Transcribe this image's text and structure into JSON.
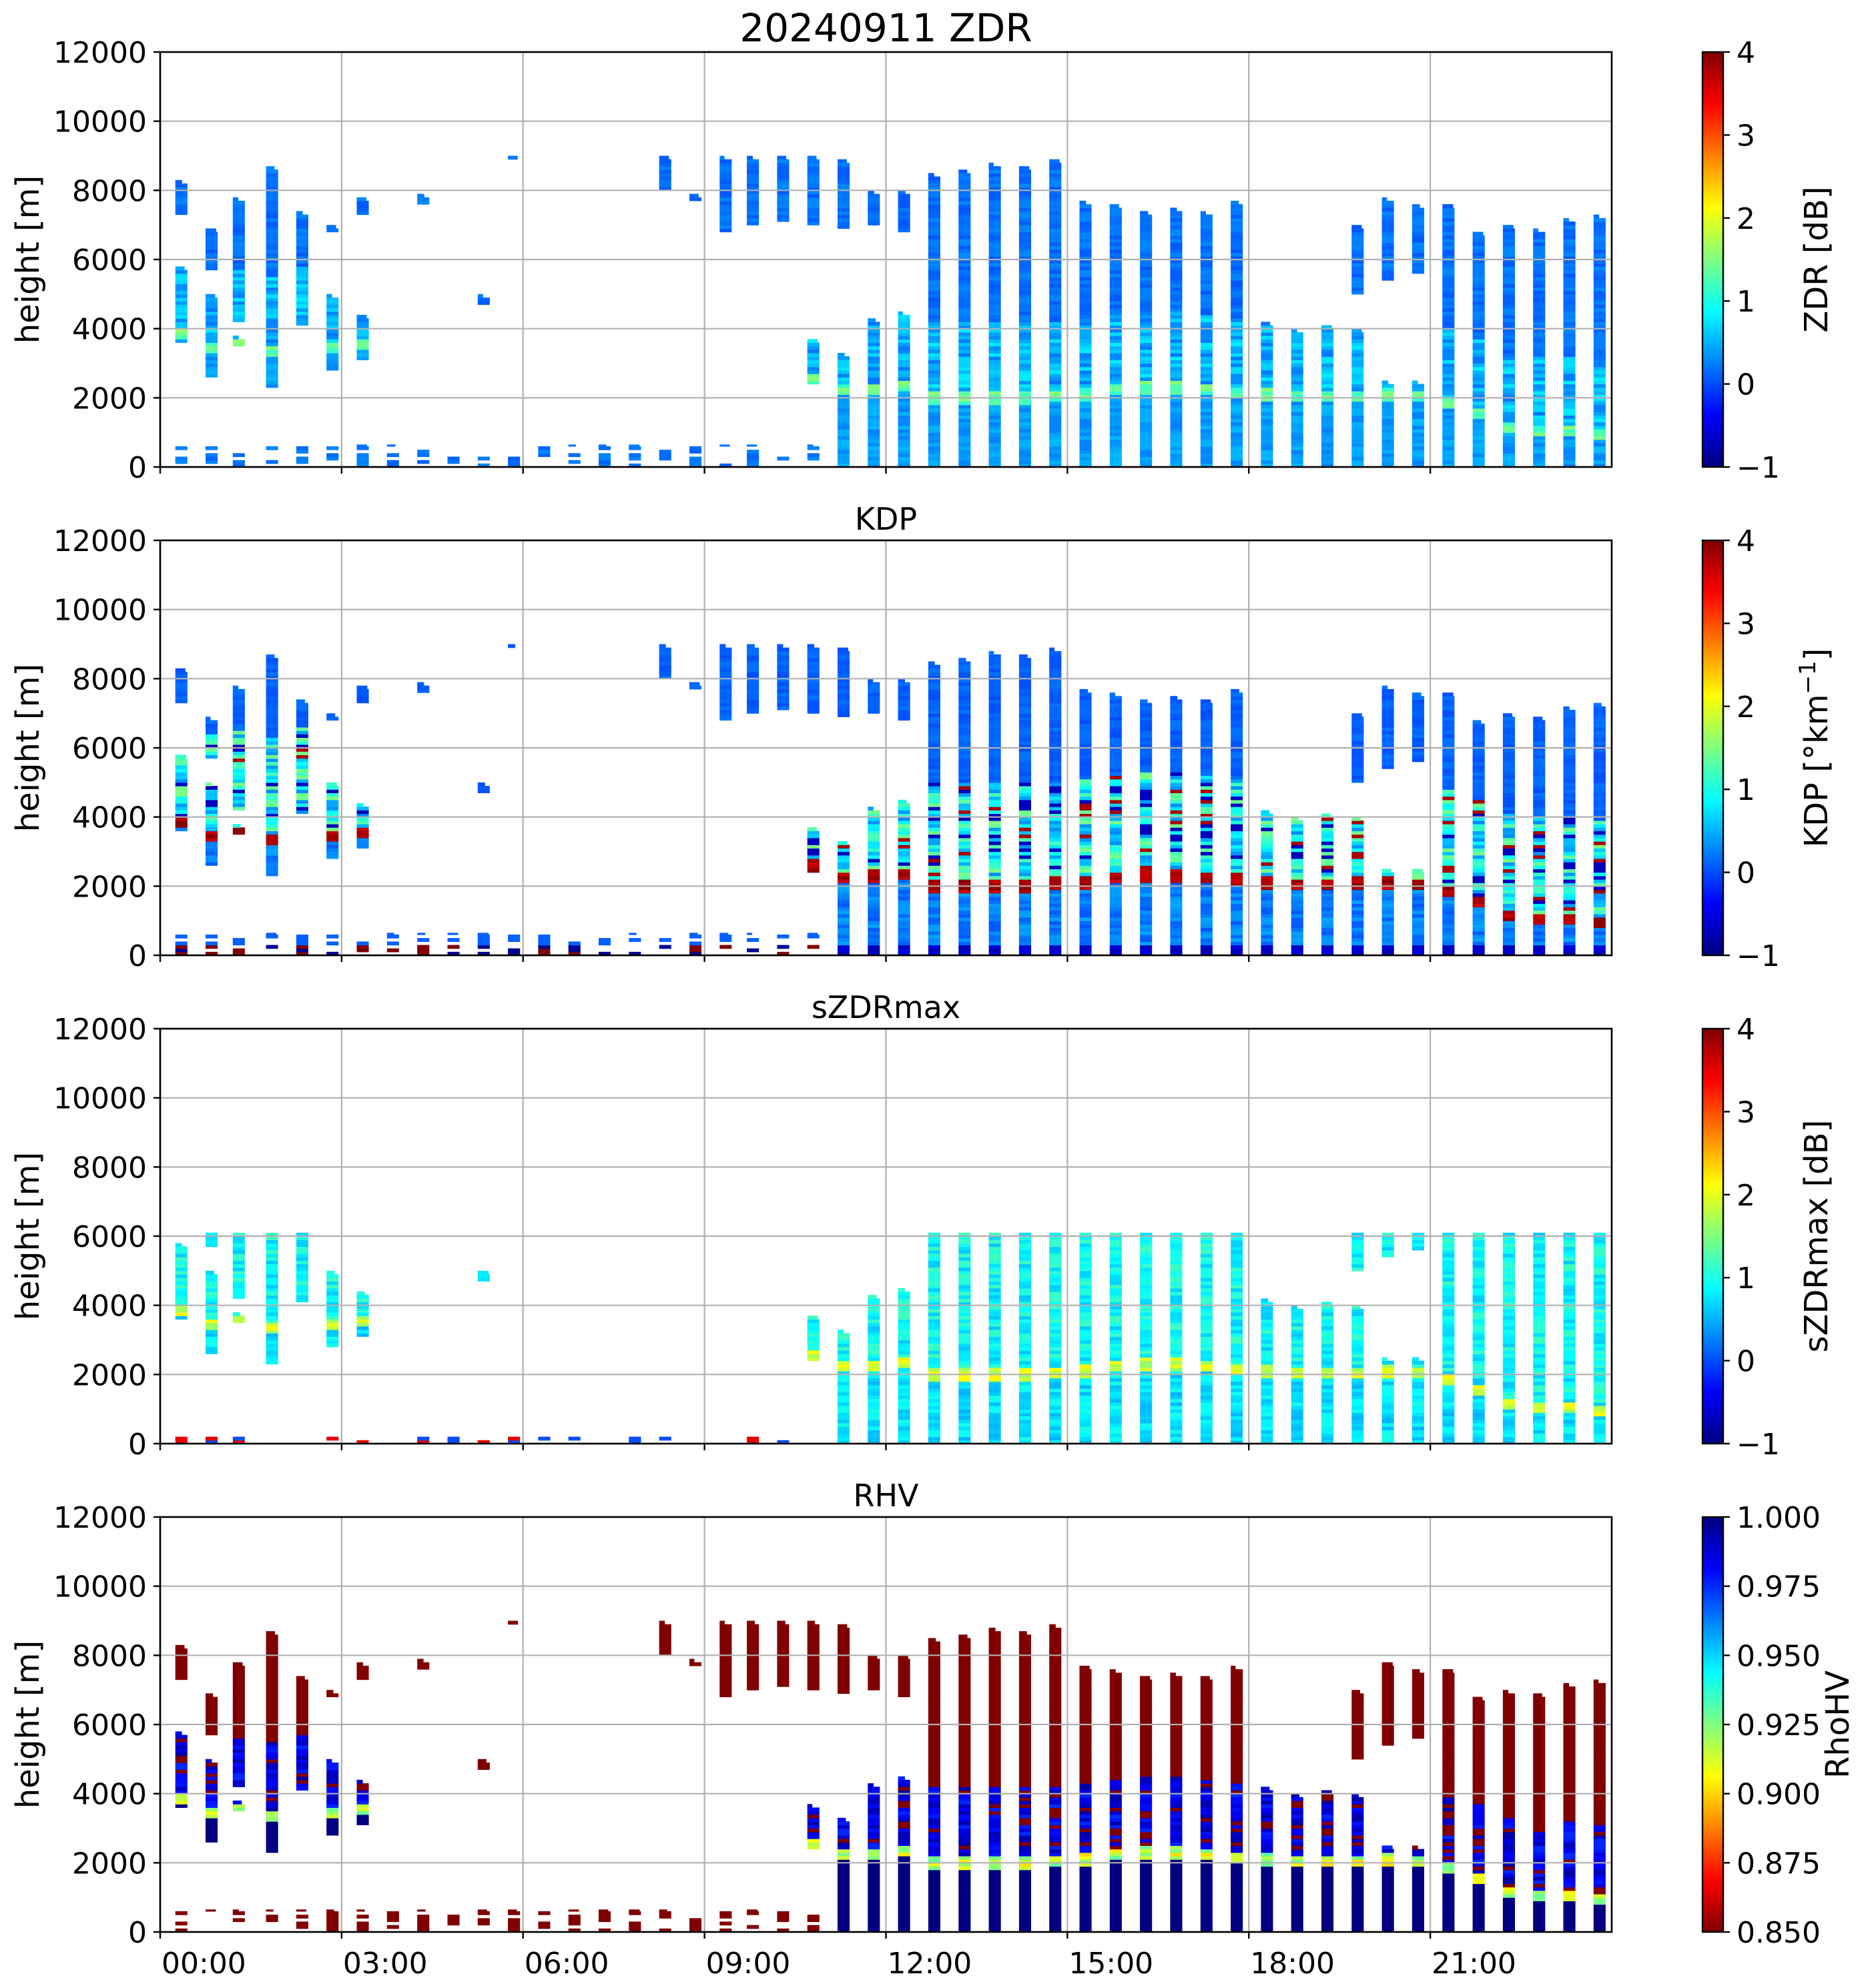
{
  "chart_data": {
    "type": "heatmap",
    "date": "20240911",
    "x_axis": {
      "unit": "hour_of_day",
      "range": [
        0,
        24
      ],
      "tick_values": [
        0,
        3,
        6,
        9,
        12,
        15,
        18,
        21
      ],
      "tick_labels": [
        "00:00",
        "03:00",
        "06:00",
        "09:00",
        "12:00",
        "15:00",
        "18:00",
        "21:00"
      ]
    },
    "y_axis": {
      "label": "height [m]",
      "range": [
        0,
        12000
      ],
      "tick_values": [
        0,
        2000,
        4000,
        6000,
        8000,
        10000,
        12000
      ],
      "tick_labels": [
        "0",
        "2000",
        "4000",
        "6000",
        "8000",
        "10000",
        "12000"
      ]
    },
    "grid": true,
    "panels": [
      {
        "key": "zdr",
        "title": "20240911 ZDR",
        "colorbar_label": "ZDR [dB]",
        "colormap": "jet",
        "clim": [
          -1,
          4
        ],
        "colorbar_ticks": [
          -1,
          0,
          1,
          2,
          3,
          4
        ],
        "colorbar_tick_labels": [
          "−1",
          "0",
          "1",
          "2",
          "3",
          "4"
        ]
      },
      {
        "key": "kdp",
        "title": "KDP",
        "colorbar_label": "KDP [°km",
        "colorbar_label_sup": "−1",
        "colorbar_label_end": "]",
        "colormap": "jet",
        "clim": [
          -1,
          4
        ],
        "colorbar_ticks": [
          -1,
          0,
          1,
          2,
          3,
          4
        ],
        "colorbar_tick_labels": [
          "−1",
          "0",
          "1",
          "2",
          "3",
          "4"
        ]
      },
      {
        "key": "szdrmax",
        "title": "sZDRmax",
        "colorbar_label": "sZDRmax [dB]",
        "colormap": "jet",
        "clim": [
          -1,
          4
        ],
        "colorbar_ticks": [
          -1,
          0,
          1,
          2,
          3,
          4
        ],
        "colorbar_tick_labels": [
          "−1",
          "0",
          "1",
          "2",
          "3",
          "4"
        ]
      },
      {
        "key": "rhv",
        "title": "RHV",
        "colorbar_label": "RhoHV",
        "colormap": "jet_r",
        "clim": [
          0.85,
          1.0
        ],
        "colorbar_ticks": [
          0.85,
          0.875,
          0.9,
          0.925,
          0.95,
          0.975,
          1.0
        ],
        "colorbar_tick_labels": [
          "0.850",
          "0.875",
          "0.900",
          "0.925",
          "0.950",
          "0.975",
          "1.000"
        ]
      }
    ],
    "profiles": [
      {
        "t": 0.35,
        "segments": [
          [
            3600,
            5800
          ],
          [
            7300,
            8300
          ]
        ],
        "ml": 3800,
        "low": true
      },
      {
        "t": 0.85,
        "segments": [
          [
            2600,
            5000
          ],
          [
            5700,
            6900
          ]
        ],
        "ml": 3400,
        "low": true
      },
      {
        "t": 1.3,
        "segments": [
          [
            3500,
            3800
          ],
          [
            4200,
            7800
          ]
        ],
        "ml": 3500,
        "low": true
      },
      {
        "t": 1.85,
        "segments": [
          [
            2300,
            8700
          ]
        ],
        "ml": 3300,
        "low": true
      },
      {
        "t": 2.35,
        "segments": [
          [
            4100,
            7400
          ]
        ],
        "ml": 3600,
        "low": true
      },
      {
        "t": 2.85,
        "segments": [
          [
            2800,
            5000
          ],
          [
            6800,
            7000
          ]
        ],
        "ml": 3400,
        "low": true
      },
      {
        "t": 3.35,
        "segments": [
          [
            3100,
            4400
          ],
          [
            7300,
            7800
          ]
        ],
        "ml": 3500,
        "low": true
      },
      {
        "t": 3.85,
        "segments": [],
        "ml": 0,
        "low": true
      },
      {
        "t": 4.35,
        "segments": [
          [
            7600,
            7900
          ]
        ],
        "ml": 0,
        "low": true
      },
      {
        "t": 4.85,
        "segments": [],
        "ml": 0,
        "low": true
      },
      {
        "t": 5.35,
        "segments": [
          [
            4700,
            5000
          ]
        ],
        "ml": 0,
        "low": true
      },
      {
        "t": 5.85,
        "segments": [
          [
            8900,
            9000
          ]
        ],
        "ml": 0,
        "low": true
      },
      {
        "t": 6.35,
        "segments": [],
        "ml": 0,
        "low": true
      },
      {
        "t": 6.85,
        "segments": [],
        "ml": 0,
        "low": true
      },
      {
        "t": 7.35,
        "segments": [],
        "ml": 0,
        "low": true
      },
      {
        "t": 7.85,
        "segments": [],
        "ml": 0,
        "low": true
      },
      {
        "t": 8.35,
        "segments": [
          [
            8000,
            9000
          ]
        ],
        "ml": 0,
        "low": true
      },
      {
        "t": 8.85,
        "segments": [
          [
            7700,
            7900
          ]
        ],
        "ml": 0,
        "low": true
      },
      {
        "t": 9.35,
        "segments": [
          [
            6800,
            9000
          ]
        ],
        "ml": 0,
        "low": true
      },
      {
        "t": 9.8,
        "segments": [
          [
            7000,
            9000
          ]
        ],
        "ml": 0,
        "low": true
      },
      {
        "t": 10.3,
        "segments": [
          [
            7100,
            9000
          ]
        ],
        "ml": 0,
        "low": true
      },
      {
        "t": 10.8,
        "segments": [
          [
            2400,
            3700
          ],
          [
            7000,
            9000
          ]
        ],
        "ml": 2500,
        "low": true
      },
      {
        "t": 11.3,
        "segments": [
          [
            0,
            3300
          ],
          [
            6900,
            8900
          ]
        ],
        "ml": 2200
      },
      {
        "t": 11.8,
        "segments": [
          [
            0,
            4300
          ],
          [
            7000,
            8000
          ]
        ],
        "ml": 2200
      },
      {
        "t": 12.3,
        "segments": [
          [
            0,
            4500
          ],
          [
            6800,
            8000
          ]
        ],
        "ml": 2300
      },
      {
        "t": 12.8,
        "segments": [
          [
            0,
            8500
          ]
        ],
        "ml": 1950
      },
      {
        "t": 13.3,
        "segments": [
          [
            0,
            8600
          ]
        ],
        "ml": 1950
      },
      {
        "t": 13.8,
        "segments": [
          [
            0,
            8800
          ]
        ],
        "ml": 1950
      },
      {
        "t": 14.3,
        "segments": [
          [
            0,
            8700
          ]
        ],
        "ml": 1950
      },
      {
        "t": 14.8,
        "segments": [
          [
            0,
            8900
          ]
        ],
        "ml": 2000
      },
      {
        "t": 15.3,
        "segments": [
          [
            0,
            7700
          ]
        ],
        "ml": 2050
      },
      {
        "t": 15.8,
        "segments": [
          [
            0,
            7600
          ]
        ],
        "ml": 2200
      },
      {
        "t": 16.3,
        "segments": [
          [
            0,
            7400
          ]
        ],
        "ml": 2250
      },
      {
        "t": 16.8,
        "segments": [
          [
            0,
            7500
          ]
        ],
        "ml": 2250
      },
      {
        "t": 17.3,
        "segments": [
          [
            0,
            7400
          ]
        ],
        "ml": 2200
      },
      {
        "t": 17.8,
        "segments": [
          [
            0,
            7700
          ]
        ],
        "ml": 2100
      },
      {
        "t": 18.3,
        "segments": [
          [
            0,
            4200
          ]
        ],
        "ml": 2050
      },
      {
        "t": 18.8,
        "segments": [
          [
            0,
            4000
          ]
        ],
        "ml": 2000
      },
      {
        "t": 19.3,
        "segments": [
          [
            0,
            4100
          ]
        ],
        "ml": 2000
      },
      {
        "t": 19.8,
        "segments": [
          [
            0,
            4000
          ],
          [
            5000,
            7000
          ]
        ],
        "ml": 2000
      },
      {
        "t": 20.3,
        "segments": [
          [
            0,
            2500
          ],
          [
            5400,
            7800
          ]
        ],
        "ml": 2050
      },
      {
        "t": 20.8,
        "segments": [
          [
            0,
            2500
          ],
          [
            5600,
            7600
          ]
        ],
        "ml": 2000
      },
      {
        "t": 21.3,
        "segments": [
          [
            0,
            7600
          ]
        ],
        "ml": 1800
      },
      {
        "t": 21.8,
        "segments": [
          [
            0,
            6800
          ]
        ],
        "ml": 1500
      },
      {
        "t": 22.3,
        "segments": [
          [
            0,
            7000
          ]
        ],
        "ml": 1100
      },
      {
        "t": 22.8,
        "segments": [
          [
            0,
            6900
          ]
        ],
        "ml": 1000
      },
      {
        "t": 23.3,
        "segments": [
          [
            0,
            7200
          ]
        ],
        "ml": 1000
      },
      {
        "t": 23.8,
        "segments": [
          [
            0,
            7300
          ]
        ],
        "ml": 900
      }
    ]
  }
}
